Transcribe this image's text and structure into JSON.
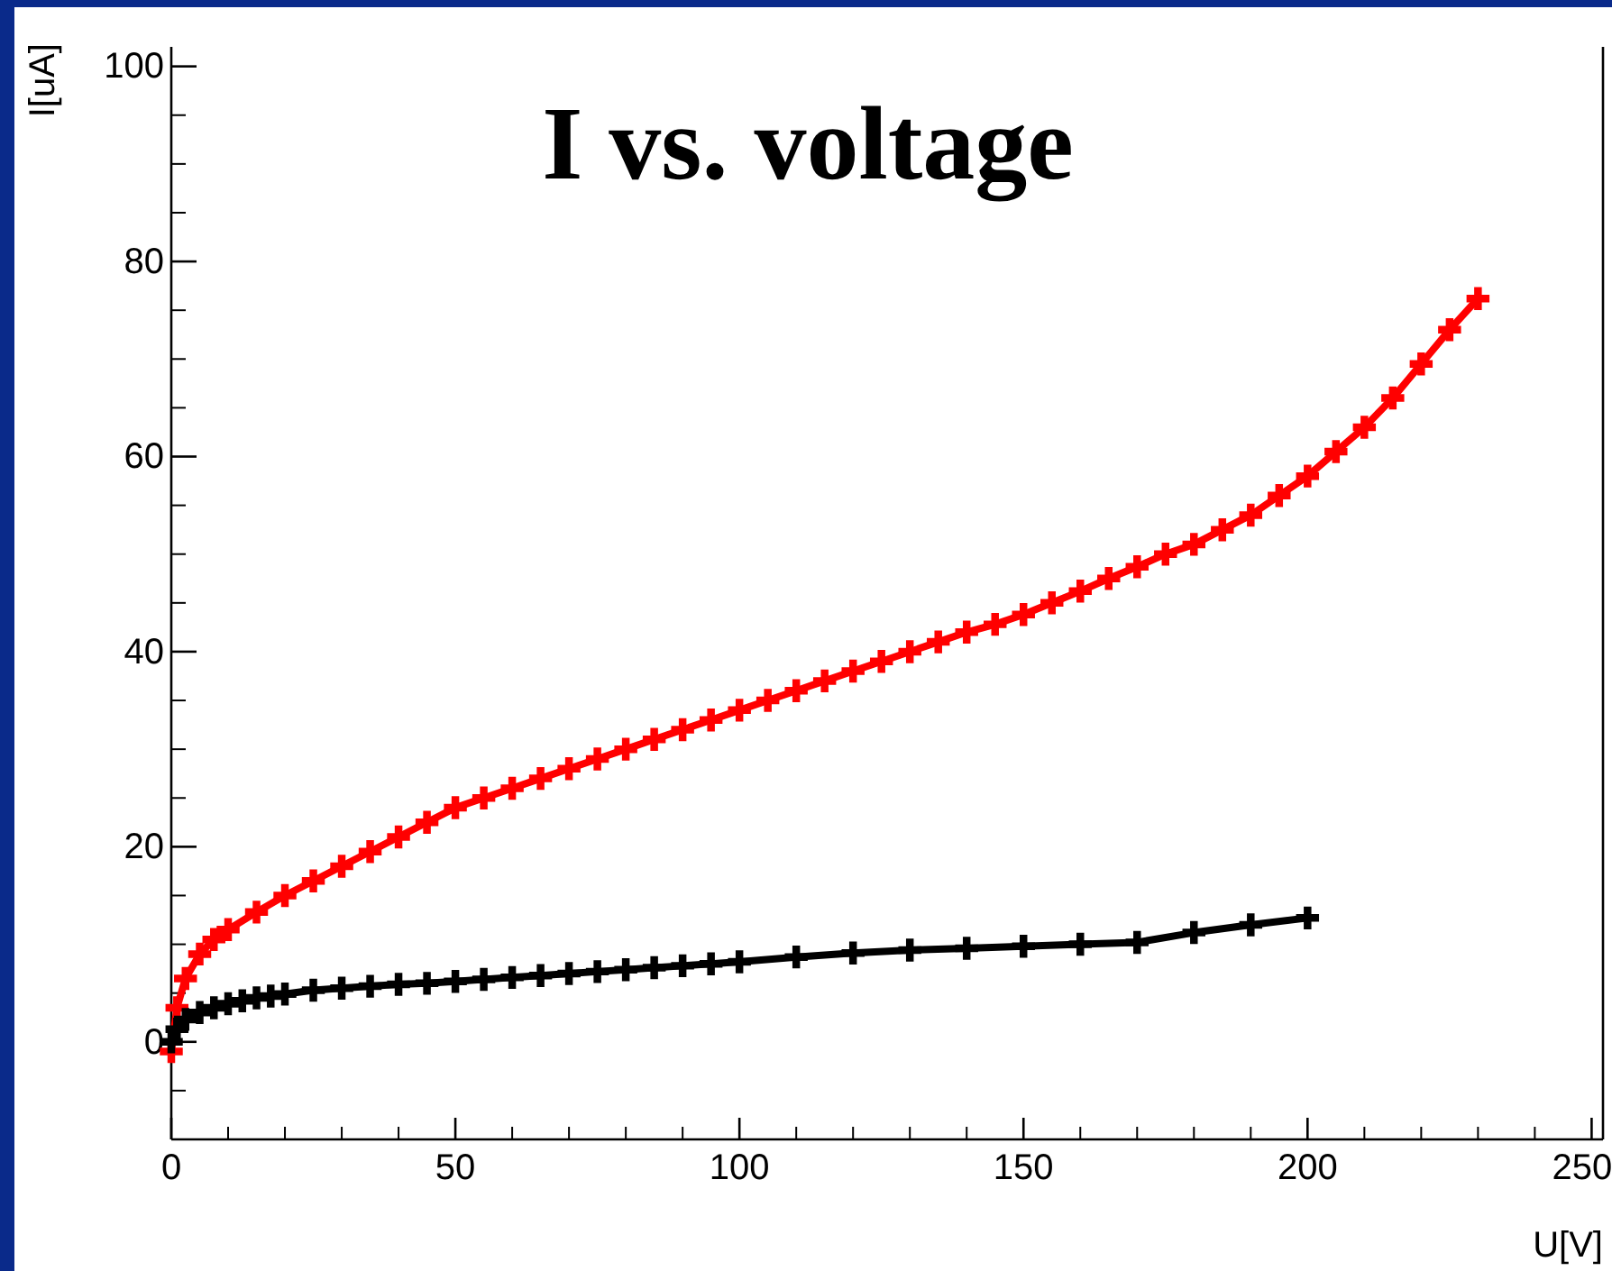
{
  "chart_data": {
    "type": "line",
    "title": "I vs. voltage",
    "xlabel": "U[V]",
    "ylabel": "I[uA]",
    "xlim": [
      0,
      252
    ],
    "ylim": [
      -10,
      102
    ],
    "xticks": [
      0,
      50,
      100,
      150,
      200,
      250
    ],
    "yticks": [
      0,
      20,
      40,
      60,
      80,
      100
    ],
    "grid": false,
    "marker": "cross",
    "line_style": "solid",
    "series": [
      {
        "color": "#ff0000",
        "x": [
          0,
          1,
          2.5,
          5,
          7.5,
          10,
          15,
          20,
          25,
          30,
          35,
          40,
          45,
          50,
          55,
          60,
          65,
          70,
          75,
          80,
          85,
          90,
          95,
          100,
          105,
          110,
          115,
          120,
          125,
          130,
          135,
          140,
          145,
          150,
          155,
          160,
          165,
          170,
          175,
          180,
          185,
          190,
          195,
          200,
          205,
          210,
          215,
          220,
          225,
          230
        ],
        "values": [
          -1,
          3.5,
          6.5,
          9,
          10.5,
          11.5,
          13.3,
          15,
          16.5,
          18,
          19.5,
          21,
          22.5,
          24,
          25,
          26,
          27,
          28,
          29,
          30,
          31,
          32,
          33,
          34,
          35,
          36,
          37,
          38,
          39,
          40,
          41,
          42,
          42.8,
          43.8,
          45,
          46.2,
          47.5,
          48.7,
          50,
          51,
          52.5,
          54,
          56,
          58,
          60.5,
          63,
          66,
          69.5,
          73,
          76.2
        ]
      },
      {
        "color": "#000000",
        "x": [
          0,
          1,
          2.5,
          5,
          7.5,
          10,
          12.5,
          15,
          17.5,
          20,
          25,
          30,
          35,
          40,
          45,
          50,
          55,
          60,
          65,
          70,
          75,
          80,
          85,
          90,
          95,
          100,
          110,
          120,
          130,
          140,
          150,
          160,
          170,
          180,
          190,
          200
        ],
        "values": [
          0,
          1.3,
          2.3,
          3,
          3.5,
          3.9,
          4.2,
          4.5,
          4.7,
          4.9,
          5.3,
          5.5,
          5.7,
          5.9,
          6,
          6.2,
          6.4,
          6.6,
          6.8,
          7,
          7.2,
          7.4,
          7.6,
          7.8,
          8,
          8.2,
          8.7,
          9.1,
          9.4,
          9.6,
          9.8,
          10,
          10.2,
          11.2,
          12,
          12.7
        ]
      }
    ]
  }
}
